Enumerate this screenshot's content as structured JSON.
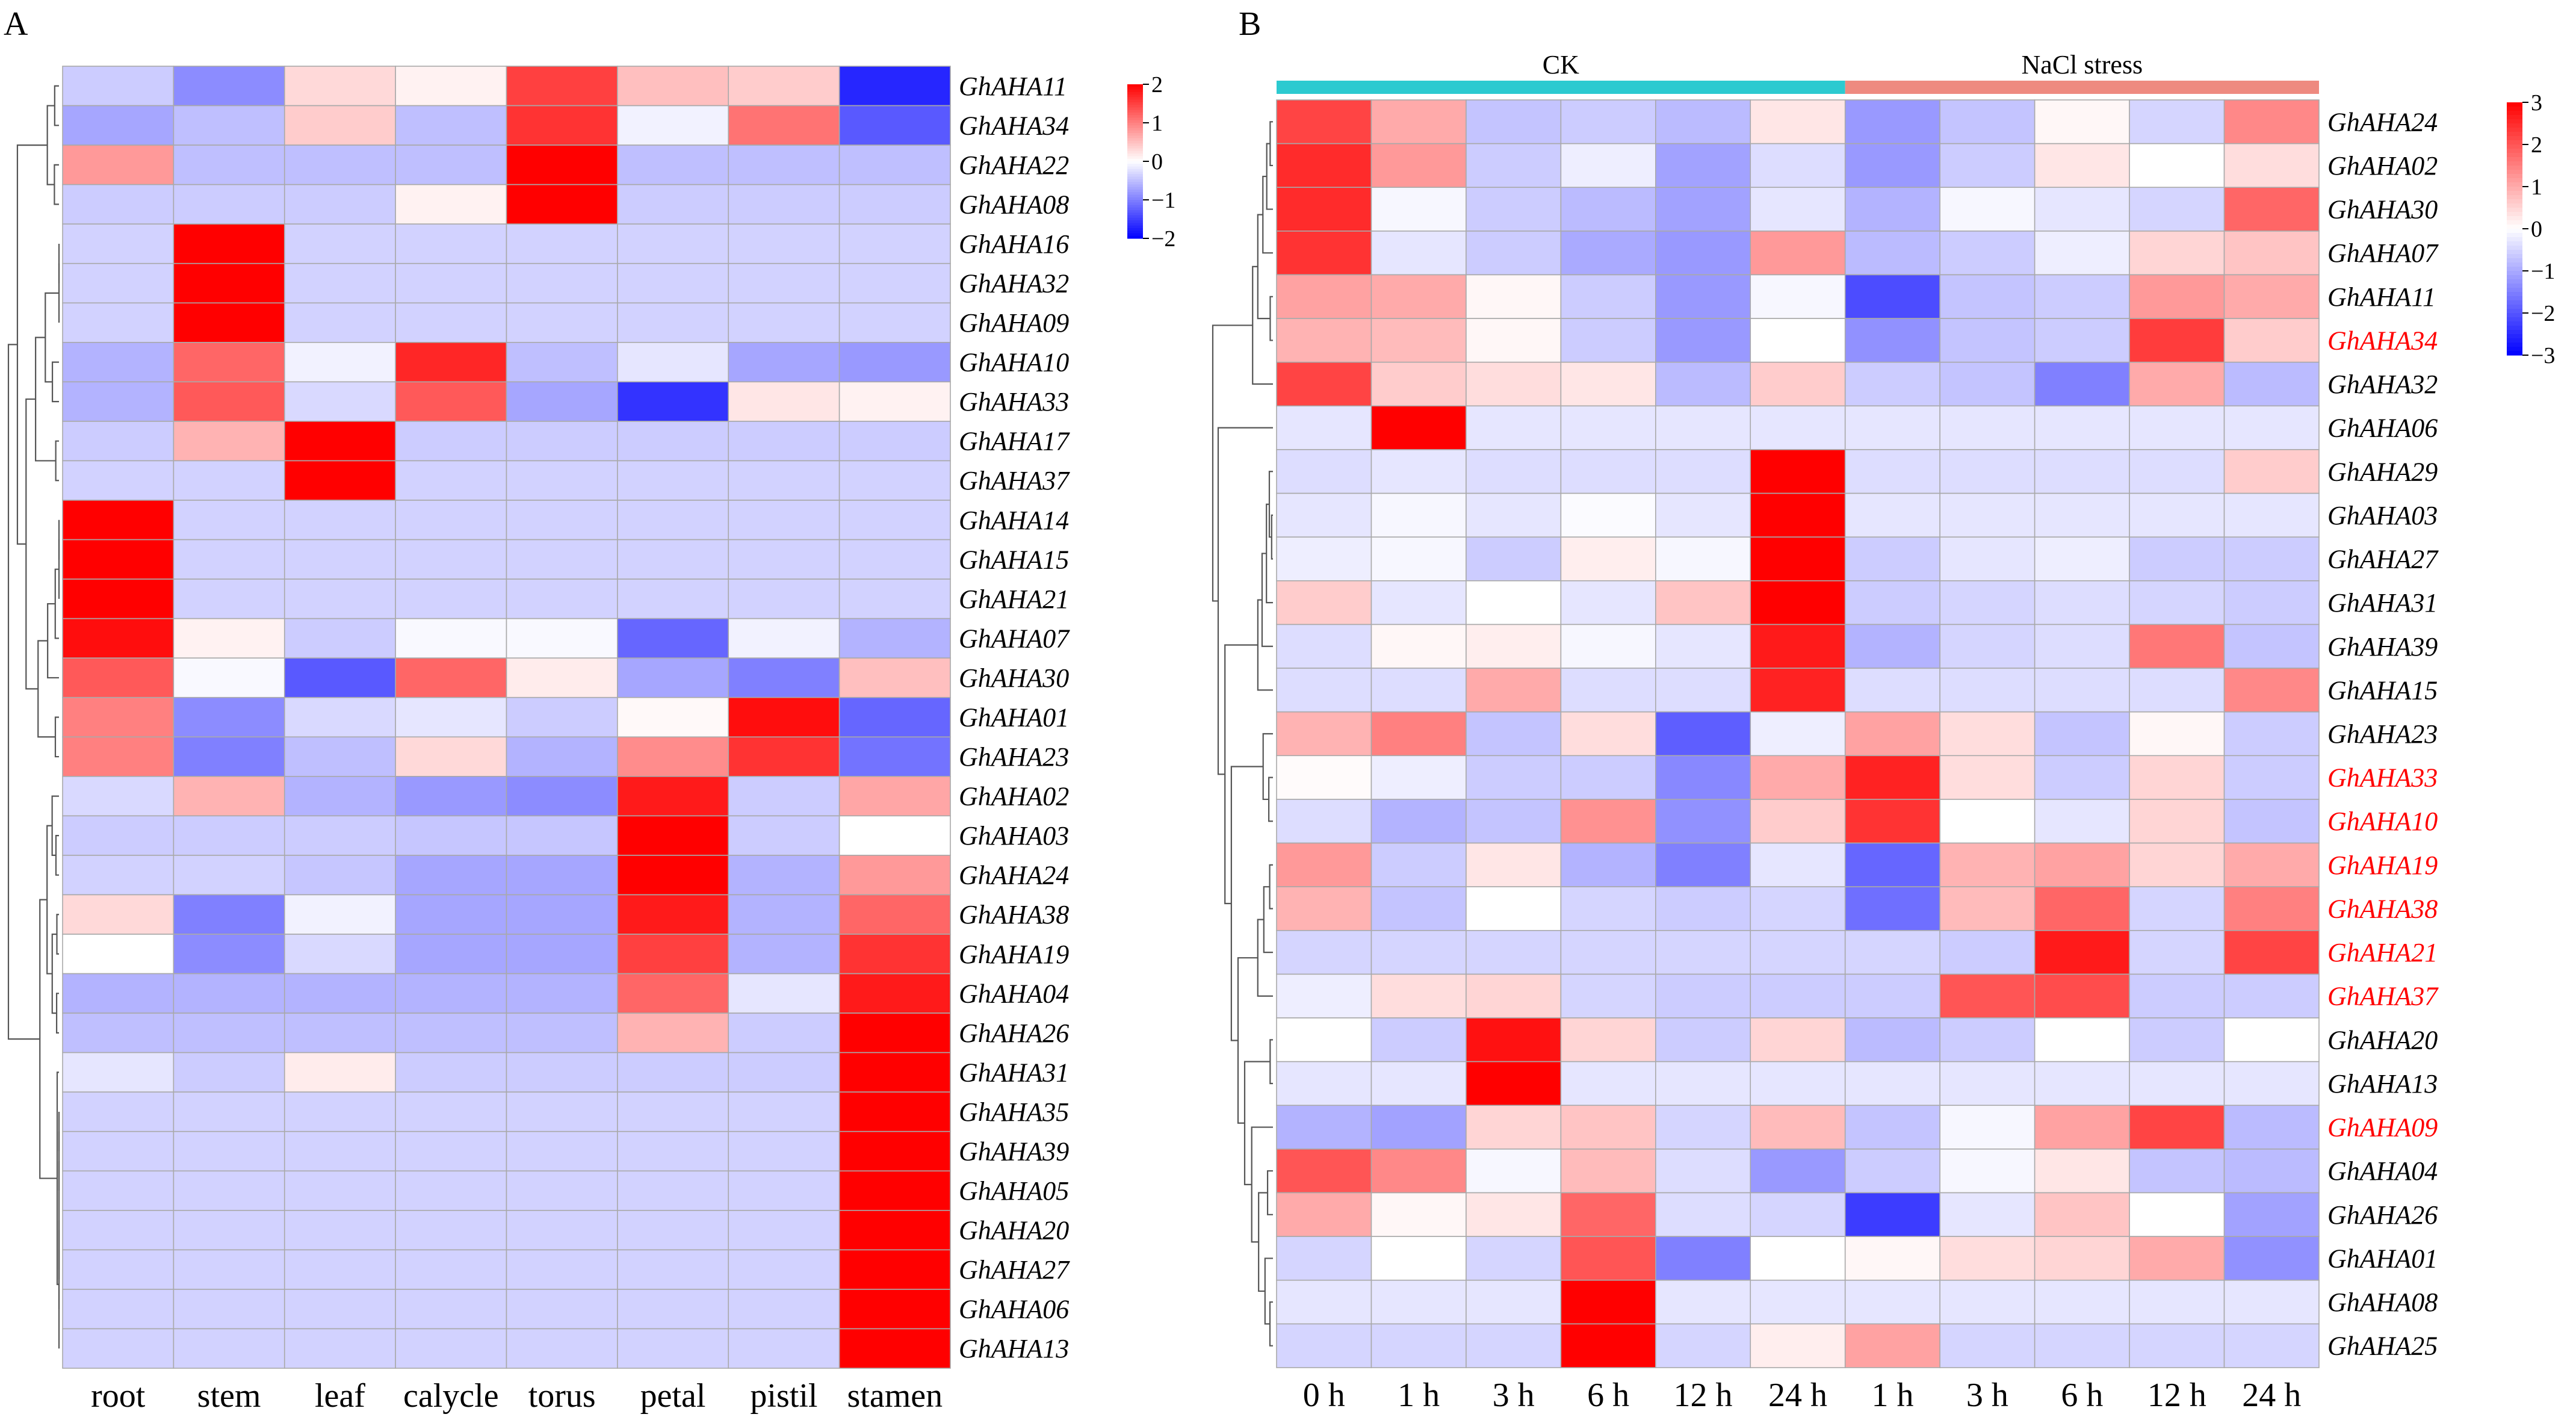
{
  "chart_data": [
    {
      "type": "heatmap",
      "panel": "A",
      "columns": [
        "root",
        "stem",
        "leaf",
        "calycle",
        "torus",
        "petal",
        "pistil",
        "stamen"
      ],
      "rows": [
        "GhAHA11",
        "GhAHA34",
        "GhAHA22",
        "GhAHA08",
        "GhAHA16",
        "GhAHA32",
        "GhAHA09",
        "GhAHA10",
        "GhAHA33",
        "GhAHA17",
        "GhAHA37",
        "GhAHA14",
        "GhAHA15",
        "GhAHA21",
        "GhAHA07",
        "GhAHA30",
        "GhAHA01",
        "GhAHA23",
        "GhAHA02",
        "GhAHA03",
        "GhAHA24",
        "GhAHA38",
        "GhAHA19",
        "GhAHA04",
        "GhAHA26",
        "GhAHA31",
        "GhAHA35",
        "GhAHA39",
        "GhAHA05",
        "GhAHA20",
        "GhAHA27",
        "GhAHA06",
        "GhAHA13"
      ],
      "values": [
        [
          -0.4,
          -0.9,
          0.3,
          0.1,
          1.5,
          0.5,
          0.4,
          -1.7
        ],
        [
          -0.7,
          -0.5,
          0.4,
          -0.5,
          1.6,
          -0.1,
          1.1,
          -1.3
        ],
        [
          0.8,
          -0.5,
          -0.5,
          -0.5,
          2.0,
          -0.5,
          -0.5,
          -0.5
        ],
        [
          -0.4,
          -0.4,
          -0.4,
          0.1,
          2.0,
          -0.4,
          -0.4,
          -0.4
        ],
        [
          -0.35,
          2.0,
          -0.35,
          -0.35,
          -0.35,
          -0.35,
          -0.35,
          -0.35
        ],
        [
          -0.35,
          2.0,
          -0.35,
          -0.35,
          -0.35,
          -0.35,
          -0.35,
          -0.35
        ],
        [
          -0.35,
          2.0,
          -0.35,
          -0.35,
          -0.35,
          -0.35,
          -0.35,
          -0.35
        ],
        [
          -0.6,
          1.2,
          -0.1,
          1.7,
          -0.5,
          -0.2,
          -0.7,
          -0.8
        ],
        [
          -0.6,
          1.3,
          -0.3,
          1.3,
          -0.7,
          -1.6,
          0.2,
          0.1
        ],
        [
          -0.4,
          0.6,
          2.0,
          -0.4,
          -0.4,
          -0.4,
          -0.4,
          -0.4
        ],
        [
          -0.35,
          -0.35,
          2.0,
          -0.35,
          -0.35,
          -0.35,
          -0.35,
          -0.35
        ],
        [
          2.0,
          -0.35,
          -0.35,
          -0.35,
          -0.35,
          -0.35,
          -0.35,
          -0.35
        ],
        [
          2.0,
          -0.35,
          -0.35,
          -0.35,
          -0.35,
          -0.35,
          -0.35,
          -0.35
        ],
        [
          2.0,
          -0.35,
          -0.35,
          -0.35,
          -0.35,
          -0.35,
          -0.35,
          -0.35
        ],
        [
          1.9,
          0.1,
          -0.4,
          -0.05,
          -0.05,
          -1.2,
          -0.1,
          -0.6
        ],
        [
          1.3,
          -0.05,
          -1.3,
          1.2,
          0.15,
          -0.7,
          -1.0,
          0.5
        ],
        [
          1.0,
          -0.9,
          -0.3,
          -0.2,
          -0.4,
          0.05,
          1.9,
          -1.2
        ],
        [
          1.0,
          -1.0,
          -0.5,
          0.3,
          -0.6,
          0.9,
          1.6,
          -1.1
        ],
        [
          -0.3,
          0.6,
          -0.6,
          -0.8,
          -0.9,
          1.8,
          -0.4,
          0.7
        ],
        [
          -0.4,
          -0.4,
          -0.4,
          -0.45,
          -0.45,
          2.0,
          -0.4,
          0.0
        ],
        [
          -0.35,
          -0.35,
          -0.45,
          -0.7,
          -0.7,
          2.0,
          -0.6,
          0.8
        ],
        [
          0.3,
          -1.0,
          -0.1,
          -0.7,
          -0.7,
          1.8,
          -0.6,
          1.2
        ],
        [
          0.0,
          -0.9,
          -0.3,
          -0.7,
          -0.7,
          1.5,
          -0.6,
          1.6
        ],
        [
          -0.6,
          -0.6,
          -0.6,
          -0.6,
          -0.6,
          1.2,
          -0.2,
          1.8
        ],
        [
          -0.5,
          -0.5,
          -0.5,
          -0.5,
          -0.5,
          0.6,
          -0.4,
          2.0
        ],
        [
          -0.2,
          -0.4,
          0.15,
          -0.4,
          -0.4,
          -0.4,
          -0.4,
          2.0
        ],
        [
          -0.35,
          -0.35,
          -0.35,
          -0.35,
          -0.35,
          -0.35,
          -0.35,
          2.0
        ],
        [
          -0.35,
          -0.35,
          -0.35,
          -0.35,
          -0.35,
          -0.35,
          -0.35,
          2.0
        ],
        [
          -0.35,
          -0.35,
          -0.35,
          -0.35,
          -0.35,
          -0.35,
          -0.35,
          2.0
        ],
        [
          -0.35,
          -0.35,
          -0.35,
          -0.35,
          -0.35,
          -0.35,
          -0.35,
          2.0
        ],
        [
          -0.35,
          -0.35,
          -0.35,
          -0.35,
          -0.35,
          -0.35,
          -0.35,
          2.0
        ],
        [
          -0.35,
          -0.35,
          -0.35,
          -0.35,
          -0.35,
          -0.35,
          -0.35,
          2.0
        ],
        [
          -0.35,
          -0.35,
          -0.35,
          -0.35,
          -0.35,
          -0.35,
          -0.35,
          2.0
        ]
      ],
      "color_scale": {
        "min": -2,
        "max": 2,
        "ticks": [
          2,
          1,
          0,
          -1,
          -2
        ],
        "tick_labels": [
          "2",
          "1",
          "0",
          "−1",
          "−2"
        ],
        "low": "#0000ff",
        "mid": "#ffffff",
        "high": "#ff0000"
      },
      "highlighted_rows": []
    },
    {
      "type": "heatmap",
      "panel": "B",
      "column_groups": [
        {
          "label": "CK",
          "span": 6,
          "color": "#2ccad0"
        },
        {
          "label": "NaCl stress",
          "span": 5,
          "color": "#ee8a80"
        }
      ],
      "columns": [
        "0 h",
        "1 h",
        "3 h",
        "6 h",
        "12 h",
        "24 h",
        "1 h",
        "3 h",
        "6 h",
        "12 h",
        "24 h"
      ],
      "rows": [
        "GhAHA24",
        "GhAHA02",
        "GhAHA30",
        "GhAHA07",
        "GhAHA11",
        "GhAHA34",
        "GhAHA32",
        "GhAHA06",
        "GhAHA29",
        "GhAHA03",
        "GhAHA27",
        "GhAHA31",
        "GhAHA39",
        "GhAHA15",
        "GhAHA23",
        "GhAHA33",
        "GhAHA10",
        "GhAHA19",
        "GhAHA38",
        "GhAHA21",
        "GhAHA37",
        "GhAHA20",
        "GhAHA13",
        "GhAHA09",
        "GhAHA04",
        "GhAHA26",
        "GhAHA01",
        "GhAHA08",
        "GhAHA25"
      ],
      "values": [
        [
          2.2,
          1.0,
          -0.7,
          -0.6,
          -0.8,
          0.3,
          -1.2,
          -0.7,
          0.1,
          -0.5,
          1.4
        ],
        [
          2.5,
          1.2,
          -0.6,
          -0.2,
          -1.1,
          -0.4,
          -1.2,
          -0.6,
          0.3,
          0.0,
          0.4
        ],
        [
          2.5,
          -0.1,
          -0.6,
          -0.8,
          -1.1,
          -0.3,
          -0.9,
          -0.1,
          -0.3,
          -0.5,
          1.8
        ],
        [
          2.4,
          -0.3,
          -0.6,
          -1.0,
          -1.2,
          1.2,
          -0.8,
          -0.6,
          -0.2,
          0.5,
          0.7
        ],
        [
          1.1,
          1.0,
          0.1,
          -0.6,
          -1.2,
          -0.1,
          -2.1,
          -0.7,
          -0.6,
          1.2,
          1.0
        ],
        [
          0.9,
          0.8,
          0.1,
          -0.6,
          -1.2,
          0.0,
          -1.3,
          -0.7,
          -0.6,
          2.3,
          0.6
        ],
        [
          2.2,
          0.6,
          0.4,
          0.3,
          -0.8,
          0.6,
          -0.6,
          -0.7,
          -1.5,
          1.0,
          -0.8
        ],
        [
          -0.3,
          3.0,
          -0.3,
          -0.3,
          -0.3,
          -0.3,
          -0.3,
          -0.3,
          -0.3,
          -0.3,
          -0.3
        ],
        [
          -0.4,
          -0.3,
          -0.4,
          -0.4,
          -0.4,
          3.0,
          -0.4,
          -0.4,
          -0.4,
          -0.4,
          0.6
        ],
        [
          -0.3,
          -0.1,
          -0.3,
          -0.05,
          -0.3,
          3.0,
          -0.3,
          -0.3,
          -0.3,
          -0.3,
          -0.3
        ],
        [
          -0.2,
          -0.1,
          -0.6,
          0.2,
          -0.1,
          3.0,
          -0.6,
          -0.3,
          -0.2,
          -0.6,
          -0.6
        ],
        [
          0.6,
          -0.3,
          0.0,
          -0.3,
          0.7,
          3.0,
          -0.6,
          -0.5,
          -0.4,
          -0.5,
          -0.6
        ],
        [
          -0.4,
          0.1,
          0.2,
          -0.1,
          -0.3,
          2.7,
          -0.9,
          -0.5,
          -0.4,
          1.6,
          -0.7
        ],
        [
          -0.4,
          -0.4,
          1.0,
          -0.4,
          -0.4,
          2.6,
          -0.4,
          -0.4,
          -0.4,
          -0.4,
          1.4
        ],
        [
          0.9,
          1.5,
          -0.7,
          0.4,
          -1.9,
          -0.2,
          1.1,
          0.4,
          -0.7,
          0.1,
          -0.6
        ],
        [
          0.05,
          -0.2,
          -0.6,
          -0.6,
          -1.4,
          1.0,
          2.6,
          0.4,
          -0.6,
          0.5,
          -0.6
        ],
        [
          -0.4,
          -0.9,
          -0.7,
          1.3,
          -1.3,
          0.6,
          2.4,
          0.0,
          -0.3,
          0.5,
          -0.7
        ],
        [
          1.2,
          -0.6,
          0.3,
          -0.9,
          -1.5,
          -0.3,
          -1.8,
          0.9,
          1.1,
          0.5,
          1.0
        ],
        [
          0.9,
          -0.7,
          0.0,
          -0.5,
          -0.6,
          -0.5,
          -1.7,
          0.8,
          1.8,
          -0.5,
          1.5
        ],
        [
          -0.5,
          -0.5,
          -0.5,
          -0.5,
          -0.5,
          -0.5,
          -0.5,
          -0.6,
          2.7,
          -0.5,
          2.2
        ],
        [
          -0.2,
          0.4,
          0.5,
          -0.5,
          -0.6,
          -0.6,
          -0.6,
          2.0,
          2.1,
          -0.6,
          -0.6
        ],
        [
          0.0,
          -0.6,
          2.8,
          0.5,
          -0.6,
          0.5,
          -0.8,
          -0.6,
          0.0,
          -0.6,
          0.0
        ],
        [
          -0.3,
          -0.3,
          3.0,
          -0.3,
          -0.3,
          -0.3,
          -0.3,
          -0.3,
          -0.3,
          -0.3,
          -0.3
        ],
        [
          -0.9,
          -1.1,
          0.5,
          0.7,
          -0.5,
          0.8,
          -0.7,
          -0.1,
          1.1,
          2.2,
          -0.8
        ],
        [
          2.0,
          1.4,
          -0.1,
          0.8,
          -0.4,
          -1.2,
          -0.6,
          -0.1,
          0.3,
          -0.7,
          -0.8
        ],
        [
          1.0,
          0.1,
          0.3,
          1.8,
          -0.4,
          -0.5,
          -2.3,
          -0.3,
          0.7,
          0.0,
          -1.1
        ],
        [
          -0.5,
          0.0,
          -0.5,
          2.0,
          -1.5,
          0.0,
          0.1,
          0.4,
          0.5,
          1.0,
          -1.3
        ],
        [
          -0.3,
          -0.3,
          -0.3,
          3.0,
          -0.3,
          -0.3,
          -0.3,
          -0.3,
          -0.3,
          -0.3,
          -0.3
        ],
        [
          -0.5,
          -0.5,
          -0.5,
          3.0,
          -0.5,
          0.2,
          1.1,
          -0.5,
          -0.5,
          -0.5,
          -0.5
        ]
      ],
      "color_scale": {
        "min": -3,
        "max": 3,
        "ticks": [
          3,
          2,
          1,
          0,
          -1,
          -2,
          -3
        ],
        "tick_labels": [
          "3",
          "2",
          "1",
          "0",
          "−1",
          "−2",
          "−3"
        ],
        "low": "#0000ff",
        "mid": "#ffffff",
        "high": "#ff0000"
      },
      "highlighted_rows": [
        "GhAHA34",
        "GhAHA33",
        "GhAHA10",
        "GhAHA19",
        "GhAHA38",
        "GhAHA21",
        "GhAHA37",
        "GhAHA09"
      ],
      "highlight_color": "#ff0000"
    }
  ],
  "panels": {
    "a_label": "A",
    "b_label": "B"
  }
}
